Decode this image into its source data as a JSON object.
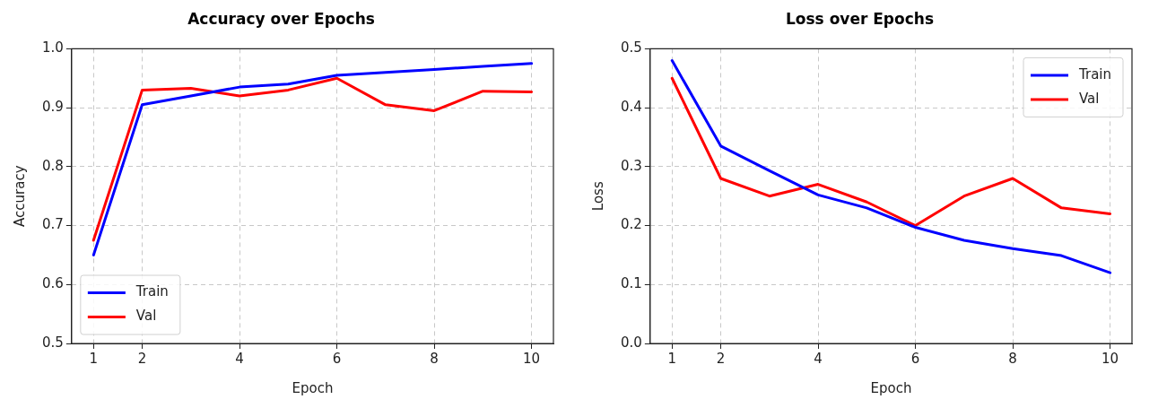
{
  "chart_data": [
    {
      "type": "line",
      "title": "Accuracy over Epochs",
      "xlabel": "Epoch",
      "ylabel": "Accuracy",
      "x": [
        1,
        2,
        3,
        4,
        5,
        6,
        7,
        8,
        9,
        10
      ],
      "series": [
        {
          "name": "Train",
          "color": "#0000ff",
          "values": [
            0.65,
            0.905,
            0.92,
            0.935,
            0.94,
            0.955,
            0.96,
            0.965,
            0.97,
            0.975
          ]
        },
        {
          "name": "Val",
          "color": "#ff0000",
          "values": [
            0.675,
            0.93,
            0.933,
            0.92,
            0.93,
            0.95,
            0.905,
            0.895,
            0.928,
            0.927
          ]
        }
      ],
      "xlim": [
        0.55,
        10.45
      ],
      "xticks": [
        1,
        2,
        4,
        6,
        8,
        10
      ],
      "ylim": [
        0.5,
        1.0
      ],
      "yticks": [
        0.5,
        0.6,
        0.7,
        0.8,
        0.9,
        {
          "value": 1.0,
          "label": "1.0"
        }
      ],
      "grid": true,
      "legend": "bottom left",
      "marker": "none",
      "line_style": "solid"
    },
    {
      "type": "line",
      "title": "Loss over Epochs",
      "xlabel": "Epoch",
      "ylabel": "Loss",
      "x": [
        1,
        2,
        3,
        4,
        5,
        6,
        7,
        8,
        9,
        10
      ],
      "series": [
        {
          "name": "Train",
          "color": "#0000ff",
          "values": [
            0.48,
            0.335,
            0.293,
            0.252,
            0.23,
            0.197,
            0.175,
            0.161,
            0.149,
            0.12
          ]
        },
        {
          "name": "Val",
          "color": "#ff0000",
          "values": [
            0.45,
            0.28,
            0.25,
            0.27,
            0.24,
            0.2,
            0.25,
            0.28,
            0.23,
            0.22
          ]
        }
      ],
      "xlim": [
        0.55,
        10.45
      ],
      "xticks": [
        1,
        2,
        4,
        6,
        8,
        10
      ],
      "ylim": [
        0.0,
        0.5
      ],
      "yticks": [
        {
          "value": 0.0,
          "label": "0.0"
        },
        0.1,
        0.2,
        0.3,
        0.4,
        0.5
      ],
      "grid": true,
      "legend": "top right",
      "marker": "none",
      "line_style": "solid"
    }
  ]
}
